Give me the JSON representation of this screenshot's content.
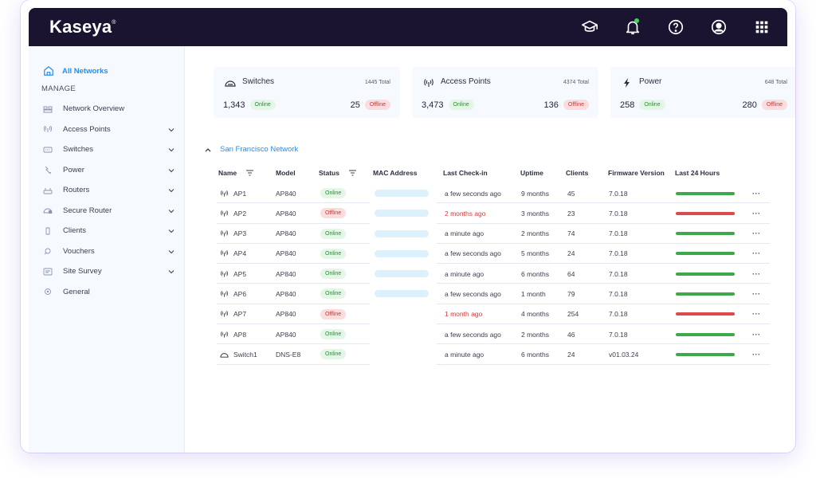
{
  "app": {
    "brand": "Kaseya",
    "brand_mark": "®"
  },
  "topbar": {
    "icons": [
      "graduation-cap-icon",
      "bell-icon",
      "help-icon",
      "user-icon",
      "grid-icon"
    ]
  },
  "sidebar": {
    "top_item": "All Networks",
    "section": "MANAGE",
    "items": [
      {
        "label": "Network Overview",
        "icon": "overview-icon",
        "expandable": false
      },
      {
        "label": "Access Points",
        "icon": "access-point-icon",
        "expandable": true
      },
      {
        "label": "Switches",
        "icon": "switch-icon",
        "expandable": true
      },
      {
        "label": "Power",
        "icon": "power-icon",
        "expandable": true
      },
      {
        "label": "Routers",
        "icon": "router-icon",
        "expandable": true
      },
      {
        "label": "Secure Router",
        "icon": "secure-router-icon",
        "expandable": true
      },
      {
        "label": "Clients",
        "icon": "client-icon",
        "expandable": true
      },
      {
        "label": "Vouchers",
        "icon": "voucher-icon",
        "expandable": true
      },
      {
        "label": "Site Survey",
        "icon": "site-survey-icon",
        "expandable": true
      },
      {
        "label": "General",
        "icon": "general-icon",
        "expandable": false
      }
    ]
  },
  "cards": [
    {
      "title": "Switches",
      "total": "1445 Total",
      "online_count": "1,343",
      "online_label": "Online",
      "offline_count": "25",
      "offline_label": "Offline",
      "icon": "switch-icon"
    },
    {
      "title": "Access Points",
      "total": "4374 Total",
      "online_count": "3,473",
      "online_label": "Online",
      "offline_count": "136",
      "offline_label": "Offline",
      "icon": "access-point-icon"
    },
    {
      "title": "Power",
      "total": "648 Total",
      "online_count": "258",
      "online_label": "Online",
      "offline_count": "280",
      "offline_label": "Offline",
      "icon": "power-icon"
    }
  ],
  "network": {
    "name": "San Francisco Network"
  },
  "table": {
    "headers": {
      "name": "Name",
      "model": "Model",
      "status": "Status",
      "mac": "MAC Address",
      "checkin": "Last Check-in",
      "uptime": "Uptime",
      "clients": "Clients",
      "firmware": "Firmware Version",
      "last24": "Last 24 Hours"
    },
    "rows": [
      {
        "name": "AP1",
        "type": "ap",
        "model": "AP840",
        "status": "Online",
        "mac": true,
        "checkin": "a few seconds ago",
        "uptime": "9 months",
        "clients": "45",
        "firmware": "7.0.18",
        "health": "green"
      },
      {
        "name": "AP2",
        "type": "ap",
        "model": "AP840",
        "status": "Offline",
        "mac": true,
        "checkin": "2 months ago",
        "uptime": "3 months",
        "clients": "23",
        "firmware": "7.0.18",
        "health": "red"
      },
      {
        "name": "AP3",
        "type": "ap",
        "model": "AP840",
        "status": "Online",
        "mac": true,
        "checkin": "a minute ago",
        "uptime": "2 months",
        "clients": "74",
        "firmware": "7.0.18",
        "health": "green"
      },
      {
        "name": "AP4",
        "type": "ap",
        "model": "AP840",
        "status": "Online",
        "mac": true,
        "checkin": "a few seconds ago",
        "uptime": "5 months",
        "clients": "24",
        "firmware": "7.0.18",
        "health": "green"
      },
      {
        "name": "AP5",
        "type": "ap",
        "model": "AP840",
        "status": "Online",
        "mac": true,
        "checkin": "a minute ago",
        "uptime": "6 months",
        "clients": "64",
        "firmware": "7.0.18",
        "health": "green"
      },
      {
        "name": "AP6",
        "type": "ap",
        "model": "AP840",
        "status": "Online",
        "mac": true,
        "checkin": "a few seconds ago",
        "uptime": "1 month",
        "clients": "79",
        "firmware": "7.0.18",
        "health": "green"
      },
      {
        "name": "AP7",
        "type": "ap",
        "model": "AP840",
        "status": "Offline",
        "mac": false,
        "checkin": "1 month ago",
        "uptime": "4 months",
        "clients": "254",
        "firmware": "7.0.18",
        "health": "red"
      },
      {
        "name": "AP8",
        "type": "ap",
        "model": "AP840",
        "status": "Online",
        "mac": false,
        "checkin": "a few seconds ago",
        "uptime": "2 months",
        "clients": "46",
        "firmware": "7.0.18",
        "health": "green"
      },
      {
        "name": "Switch1",
        "type": "switch",
        "model": "DNS-E8",
        "status": "Online",
        "mac": false,
        "checkin": "a minute ago",
        "uptime": "6 months",
        "clients": "24",
        "firmware": "v01.03.24",
        "health": "green"
      }
    ],
    "row_menu": "···"
  },
  "colors": {
    "accent": "#2b8ee8",
    "topbar": "#1a1431",
    "online": "#3fa84a",
    "offline": "#dc4b4b"
  }
}
